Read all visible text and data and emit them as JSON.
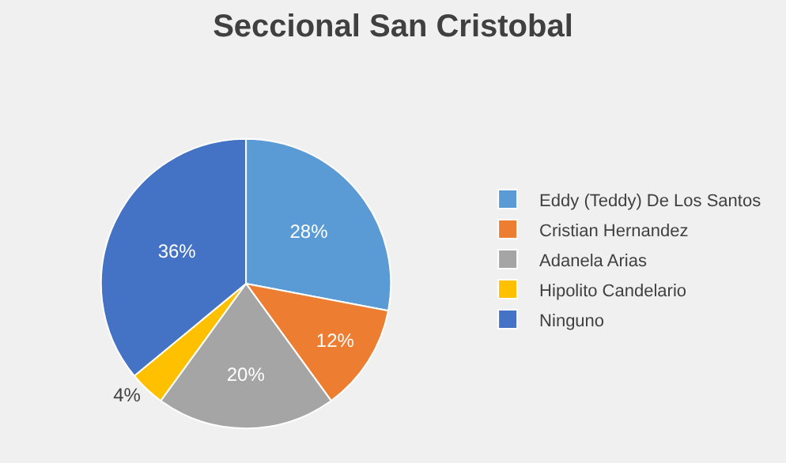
{
  "chart_data": {
    "type": "pie",
    "title": "Seccional San Cristobal",
    "categories": [
      "Eddy (Teddy) De Los Santos",
      "Cristian Hernandez",
      "Adanela Arias",
      "Hipolito Candelario",
      "Ninguno"
    ],
    "values": [
      28,
      12,
      20,
      4,
      36
    ],
    "value_labels": [
      "28%",
      "12%",
      "20%",
      "4%",
      "36%"
    ],
    "colors": [
      "#5b9bd5",
      "#ed7d31",
      "#a5a5a5",
      "#ffc000",
      "#4472c4"
    ],
    "legend": "right"
  }
}
